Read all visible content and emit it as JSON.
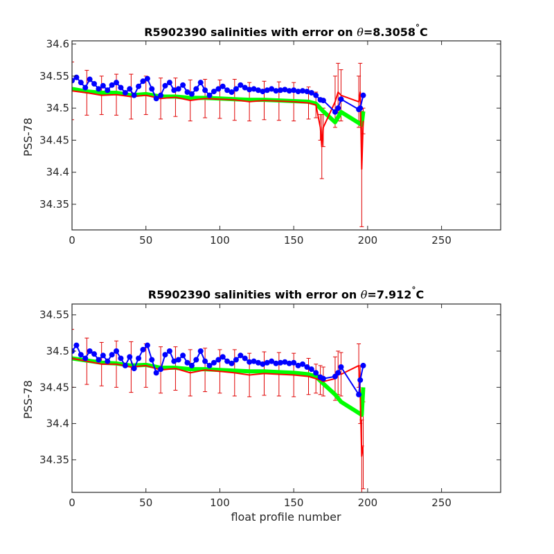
{
  "chart_data": [
    {
      "type": "line",
      "title_prefix": "R5902390 salinities with error on ",
      "title_theta": "θ",
      "title_suffix": "=8.3058",
      "title_degree": "°",
      "title_unit": "C",
      "ylabel": "PSS-78",
      "xlabel": "",
      "xlim": [
        0,
        290
      ],
      "ylim": [
        34.31,
        34.605
      ],
      "xticks": [
        0,
        50,
        100,
        150,
        200,
        250
      ],
      "yticks": [
        34.35,
        34.4,
        34.45,
        34.5,
        34.55,
        34.6
      ],
      "ytick_labels": [
        "34.35",
        "34.4",
        "34.45",
        "34.5",
        "34.55",
        "34.6"
      ],
      "grid": false,
      "colors": {
        "float": "#0000ff",
        "mapped": "#ff0000",
        "error": "#e00000",
        "calibrated": "#00ff00"
      },
      "series": [
        {
          "role": "float",
          "x": [
            0,
            3,
            6,
            9,
            12,
            15,
            18,
            21,
            24,
            27,
            30,
            33,
            36,
            39,
            42,
            45,
            48,
            51,
            54,
            57,
            60,
            63,
            66,
            69,
            72,
            75,
            78,
            81,
            84,
            87,
            90,
            93,
            96,
            99,
            102,
            105,
            108,
            111,
            114,
            117,
            120,
            123,
            126,
            129,
            132,
            135,
            138,
            141,
            144,
            147,
            150,
            153,
            156,
            159,
            162,
            165,
            168,
            170,
            178,
            180,
            182,
            194,
            195,
            197
          ],
          "y": [
            34.543,
            34.548,
            34.54,
            34.532,
            34.545,
            34.538,
            34.53,
            34.535,
            34.528,
            34.536,
            34.54,
            34.532,
            34.524,
            34.53,
            34.52,
            34.534,
            34.542,
            34.546,
            34.53,
            34.515,
            34.52,
            34.535,
            34.54,
            34.528,
            34.53,
            34.536,
            34.525,
            34.522,
            34.53,
            34.54,
            34.528,
            34.52,
            34.526,
            34.53,
            34.534,
            34.528,
            34.525,
            34.53,
            34.536,
            34.532,
            34.529,
            34.53,
            34.528,
            34.526,
            34.528,
            34.53,
            34.527,
            34.528,
            34.529,
            34.527,
            34.528,
            34.526,
            34.527,
            34.526,
            34.524,
            34.52,
            34.513,
            34.512,
            34.494,
            34.5,
            34.514,
            34.498,
            34.5,
            34.52
          ]
        },
        {
          "role": "mapped",
          "x": [
            0,
            10,
            20,
            30,
            40,
            50,
            60,
            70,
            80,
            90,
            100,
            110,
            120,
            130,
            140,
            150,
            160,
            165,
            168,
            169,
            170,
            178,
            180,
            182,
            194,
            195,
            196,
            197
          ],
          "y": [
            34.527,
            34.524,
            34.52,
            34.521,
            34.518,
            34.52,
            34.515,
            34.517,
            34.512,
            34.515,
            34.514,
            34.513,
            34.51,
            34.512,
            34.511,
            34.51,
            34.508,
            34.505,
            34.47,
            34.44,
            34.47,
            34.51,
            34.525,
            34.52,
            34.51,
            34.525,
            34.405,
            34.48
          ],
          "err": [
            0.045,
            0.035,
            0.03,
            0.032,
            0.035,
            0.03,
            0.032,
            0.03,
            0.032,
            0.03,
            0.03,
            0.032,
            0.03,
            0.03,
            0.03,
            0.03,
            0.025,
            0.02,
            0.02,
            0.05,
            0.03,
            0.04,
            0.045,
            0.04,
            0.04,
            0.045,
            0.09,
            0.02
          ]
        },
        {
          "role": "calibrated",
          "x": [
            0,
            10,
            20,
            30,
            40,
            50,
            60,
            70,
            80,
            90,
            100,
            110,
            120,
            130,
            140,
            150,
            160,
            165,
            170,
            178,
            182,
            196,
            197
          ],
          "y": [
            34.53,
            34.526,
            34.524,
            34.524,
            34.52,
            34.522,
            34.518,
            34.518,
            34.516,
            34.516,
            34.515,
            34.514,
            34.513,
            34.513,
            34.512,
            34.511,
            34.51,
            34.507,
            34.495,
            34.478,
            34.494,
            34.474,
            34.495
          ]
        }
      ]
    },
    {
      "type": "line",
      "title_prefix": "R5902390 salinities with error on ",
      "title_theta": "θ",
      "title_suffix": "=7.912",
      "title_degree": "°",
      "title_unit": "C",
      "ylabel": "PSS-78",
      "xlabel": "float profile number",
      "xlim": [
        0,
        290
      ],
      "ylim": [
        34.305,
        34.565
      ],
      "xticks": [
        0,
        50,
        100,
        150,
        200,
        250
      ],
      "yticks": [
        34.35,
        34.4,
        34.45,
        34.5,
        34.55
      ],
      "ytick_labels": [
        "34.35",
        "34.4",
        "34.45",
        "34.5",
        "34.55"
      ],
      "grid": false,
      "colors": {
        "float": "#0000ff",
        "mapped": "#ff0000",
        "error": "#e00000",
        "calibrated": "#00ff00"
      },
      "series": [
        {
          "role": "float",
          "x": [
            0,
            3,
            6,
            9,
            12,
            15,
            18,
            21,
            24,
            27,
            30,
            33,
            36,
            39,
            42,
            45,
            48,
            51,
            54,
            57,
            60,
            63,
            66,
            69,
            72,
            75,
            78,
            81,
            84,
            87,
            90,
            93,
            96,
            99,
            102,
            105,
            108,
            111,
            114,
            117,
            120,
            123,
            126,
            129,
            132,
            135,
            138,
            141,
            144,
            147,
            150,
            153,
            156,
            159,
            162,
            165,
            168,
            170,
            178,
            180,
            182,
            194,
            195,
            197
          ],
          "y": [
            34.5,
            34.508,
            34.495,
            34.49,
            34.5,
            34.496,
            34.488,
            34.494,
            34.486,
            34.495,
            34.5,
            34.49,
            34.48,
            34.492,
            34.476,
            34.49,
            34.502,
            34.508,
            34.488,
            34.47,
            34.475,
            34.495,
            34.5,
            34.486,
            34.488,
            34.494,
            34.484,
            34.48,
            34.488,
            34.5,
            34.486,
            34.48,
            34.484,
            34.488,
            34.492,
            34.486,
            34.483,
            34.488,
            34.494,
            34.49,
            34.485,
            34.486,
            34.484,
            34.482,
            34.484,
            34.486,
            34.483,
            34.484,
            34.485,
            34.483,
            34.484,
            34.48,
            34.482,
            34.478,
            34.475,
            34.47,
            34.464,
            34.462,
            34.465,
            34.47,
            34.478,
            34.44,
            34.46,
            34.48
          ]
        },
        {
          "role": "mapped",
          "x": [
            0,
            10,
            20,
            30,
            40,
            50,
            60,
            70,
            80,
            90,
            100,
            110,
            120,
            130,
            140,
            150,
            160,
            165,
            168,
            170,
            178,
            180,
            182,
            194,
            195,
            196,
            197
          ],
          "y": [
            34.49,
            34.486,
            34.482,
            34.482,
            34.478,
            34.48,
            34.474,
            34.476,
            34.47,
            34.474,
            34.472,
            34.47,
            34.467,
            34.469,
            34.468,
            34.467,
            34.465,
            34.462,
            34.46,
            34.458,
            34.462,
            34.47,
            34.468,
            34.48,
            34.44,
            34.355,
            34.37
          ],
          "err": [
            0.04,
            0.032,
            0.03,
            0.032,
            0.035,
            0.03,
            0.032,
            0.03,
            0.032,
            0.03,
            0.03,
            0.032,
            0.03,
            0.03,
            0.03,
            0.03,
            0.025,
            0.02,
            0.02,
            0.02,
            0.03,
            0.03,
            0.03,
            0.03,
            0.04,
            0.05,
            0.06
          ]
        },
        {
          "role": "calibrated",
          "x": [
            0,
            10,
            20,
            30,
            40,
            50,
            60,
            70,
            80,
            90,
            100,
            110,
            120,
            130,
            140,
            150,
            160,
            165,
            170,
            178,
            182,
            196,
            197
          ],
          "y": [
            34.49,
            34.487,
            34.484,
            34.483,
            34.48,
            34.481,
            34.477,
            34.477,
            34.475,
            34.475,
            34.474,
            34.473,
            34.472,
            34.472,
            34.471,
            34.47,
            34.468,
            34.465,
            34.455,
            34.44,
            34.43,
            34.412,
            34.45
          ]
        }
      ]
    }
  ]
}
